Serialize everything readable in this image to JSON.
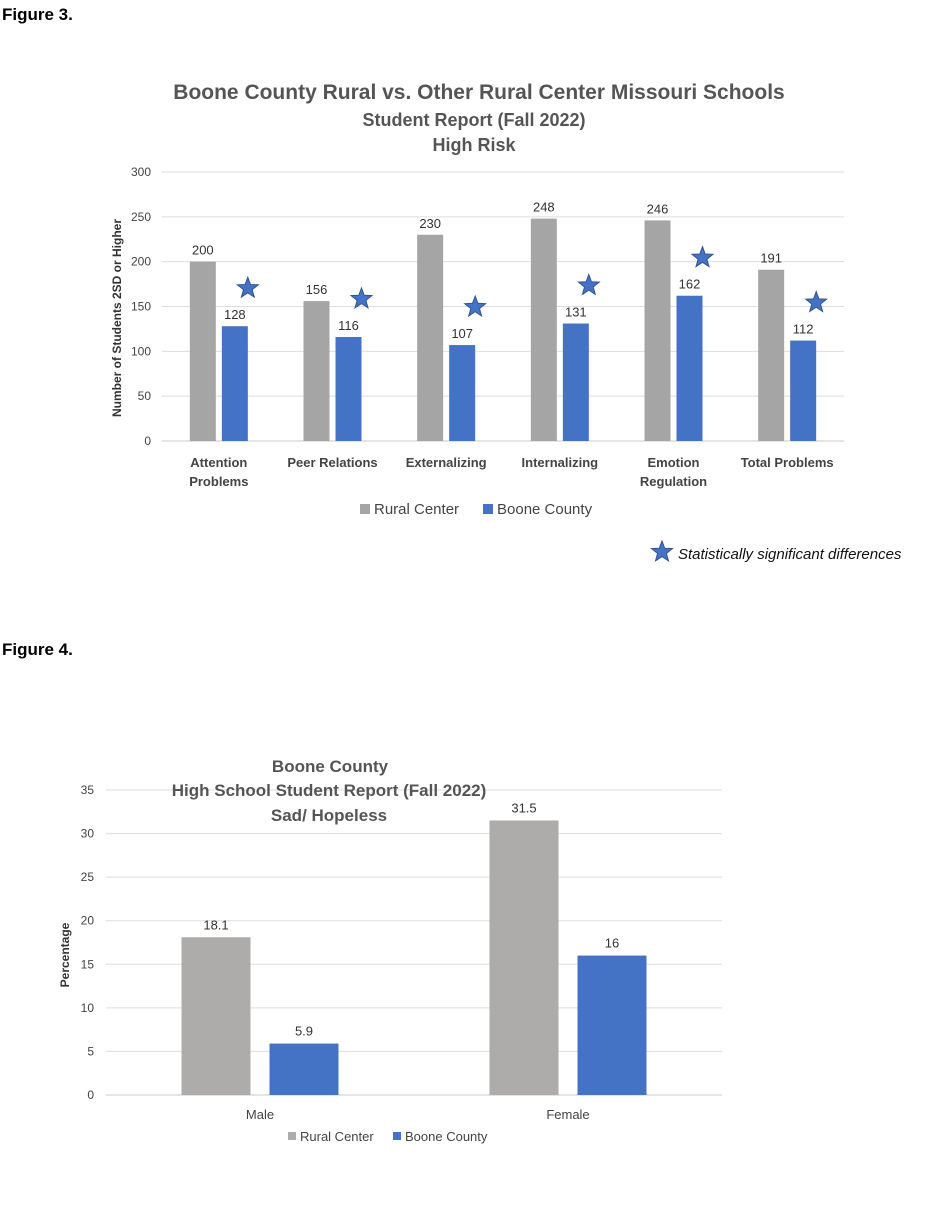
{
  "figures": {
    "fig3_label": "Figure 3.",
    "fig4_label": "Figure 4."
  },
  "chart_data": [
    {
      "type": "bar",
      "title": "Boone County Rural vs. Other Rural Center Missouri Schools",
      "subtitle": [
        "Student Report (Fall 2022)",
        "High Risk"
      ],
      "xlabel": "",
      "ylabel": "Number of Students 2SD or Higher",
      "ylim": [
        0,
        300
      ],
      "yticks": [
        0,
        50,
        100,
        150,
        200,
        250,
        300
      ],
      "grid": true,
      "legend_position": "bottom",
      "categories": [
        [
          "Attention",
          "Problems"
        ],
        [
          "Peer Relations"
        ],
        [
          "Externalizing"
        ],
        [
          "Internalizing"
        ],
        [
          "Emotion",
          "Regulation"
        ],
        [
          "Total Problems"
        ]
      ],
      "series": [
        {
          "name": "Rural Center",
          "color": "#a5a5a5",
          "values": [
            200,
            156,
            230,
            248,
            246,
            191
          ]
        },
        {
          "name": "Boone County",
          "color": "#4472c4",
          "values": [
            128,
            116,
            107,
            131,
            162,
            112
          ]
        }
      ],
      "significant": [
        true,
        true,
        true,
        true,
        true,
        true
      ],
      "significance_note": "Statistically significant differences",
      "significance_marker": "star-icon"
    },
    {
      "type": "bar",
      "title": "Boone County",
      "subtitle": [
        "High School Student Report (Fall 2022)",
        "Sad/ Hopeless"
      ],
      "xlabel": "",
      "ylabel": "Percentage",
      "ylim": [
        0,
        35
      ],
      "yticks": [
        0,
        5,
        10,
        15,
        20,
        25,
        30,
        35
      ],
      "grid": true,
      "legend_position": "bottom",
      "categories": [
        "Male",
        "Female"
      ],
      "series": [
        {
          "name": "Rural Center",
          "color": "#aeabab",
          "values": [
            18.1,
            31.5
          ]
        },
        {
          "name": "Boone County",
          "color": "#4472c4",
          "values": [
            5.9,
            16
          ]
        }
      ]
    }
  ]
}
